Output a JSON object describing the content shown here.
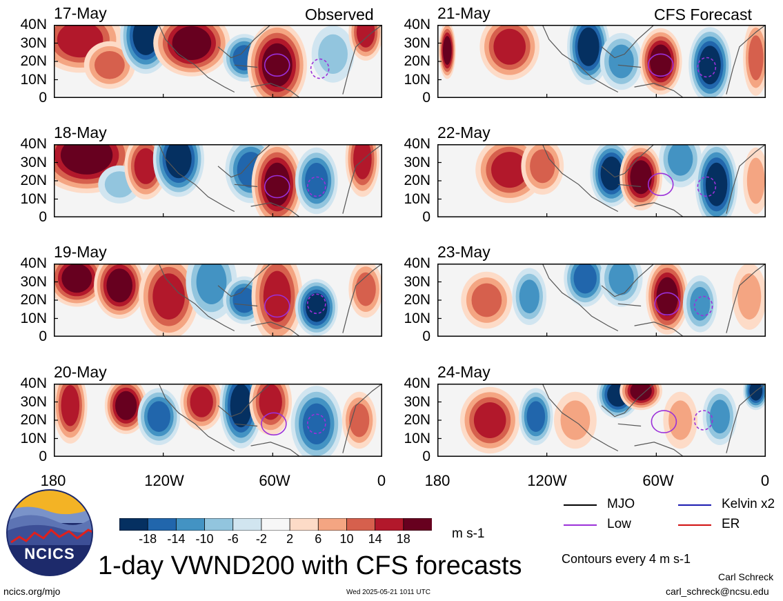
{
  "section_labels": {
    "observed": "Observed",
    "forecast": "CFS Forecast"
  },
  "panels": {
    "observed": [
      {
        "date": "17-May"
      },
      {
        "date": "18-May"
      },
      {
        "date": "19-May"
      },
      {
        "date": "20-May"
      }
    ],
    "forecast": [
      {
        "date": "21-May"
      },
      {
        "date": "22-May"
      },
      {
        "date": "23-May"
      },
      {
        "date": "24-May"
      }
    ]
  },
  "axes": {
    "y_ticks": [
      "40N",
      "30N",
      "20N",
      "10N",
      "0"
    ],
    "x_ticks": [
      "180",
      "120W",
      "60W",
      "0"
    ],
    "lat_range": [
      0,
      40
    ],
    "lon_range": [
      "180",
      "0"
    ]
  },
  "colorbar": {
    "labels": [
      "-18",
      "-14",
      "-10",
      "-6",
      "-2",
      "2",
      "6",
      "10",
      "14",
      "18"
    ],
    "units": "m s-1",
    "colors": [
      "#053061",
      "#2166ac",
      "#4393c3",
      "#92c5de",
      "#d1e5f0",
      "#f7f7f7",
      "#fddbc7",
      "#f4a582",
      "#d6604d",
      "#b2182b",
      "#67001f"
    ]
  },
  "legend": {
    "items": [
      {
        "label": "MJO",
        "color": "#000000"
      },
      {
        "label": "Kelvin x2",
        "color": "#1a1ab0"
      },
      {
        "label": "Low",
        "color": "#9b30d9"
      },
      {
        "label": "ER",
        "color": "#d01010"
      }
    ],
    "note": "Contours every 4 m s-1"
  },
  "logo": {
    "text": "NCICS"
  },
  "title": "1-day VWND200 with CFS forecasts",
  "footer": {
    "url": "ncics.org/mjo",
    "timestamp": "Wed 2025-05-21 1011 UTC",
    "author": "Carl Schreck",
    "email": "carl_schreck@ncsu.edu"
  }
}
